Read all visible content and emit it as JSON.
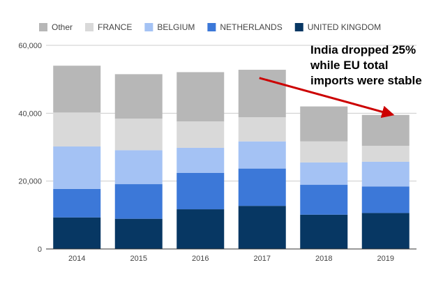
{
  "chart_data": {
    "type": "bar",
    "stacked": true,
    "title": "",
    "xlabel": "",
    "ylabel": "",
    "categories": [
      "2014",
      "2015",
      "2016",
      "2017",
      "2018",
      "2019"
    ],
    "ylim": [
      0,
      60000
    ],
    "yticks": [
      0,
      20000,
      40000,
      60000
    ],
    "ytick_labels": [
      "0",
      "20,000",
      "40,000",
      "60,000"
    ],
    "grid": true,
    "legend_position": "top",
    "series": [
      {
        "name": "UNITED KINGDOM",
        "color": "#073763",
        "values": [
          9300,
          8900,
          11700,
          12700,
          10100,
          10600
        ]
      },
      {
        "name": "NETHERLANDS",
        "color": "#3c78d8",
        "values": [
          8400,
          10200,
          10700,
          11000,
          8800,
          7800
        ]
      },
      {
        "name": "BELGIUM",
        "color": "#a4c2f4",
        "values": [
          12500,
          10000,
          7400,
          8000,
          6600,
          7300
        ]
      },
      {
        "name": "FRANCE",
        "color": "#d9d9d9",
        "values": [
          10000,
          9300,
          7800,
          7100,
          6200,
          4700
        ]
      },
      {
        "name": "Other",
        "color": "#b7b7b7",
        "values": [
          13800,
          13100,
          14500,
          14000,
          10300,
          9100
        ]
      }
    ],
    "legend_order": [
      "Other",
      "FRANCE",
      "BELGIUM",
      "NETHERLANDS",
      "UNITED KINGDOM"
    ],
    "annotation": {
      "lines": [
        "India dropped 25%",
        "while EU total",
        "imports were stable"
      ],
      "arrow_color": "#cc0000",
      "arrow_from": {
        "category": "2017",
        "value": 51000
      },
      "arrow_to": {
        "category": "2019",
        "value": 39500
      }
    }
  }
}
